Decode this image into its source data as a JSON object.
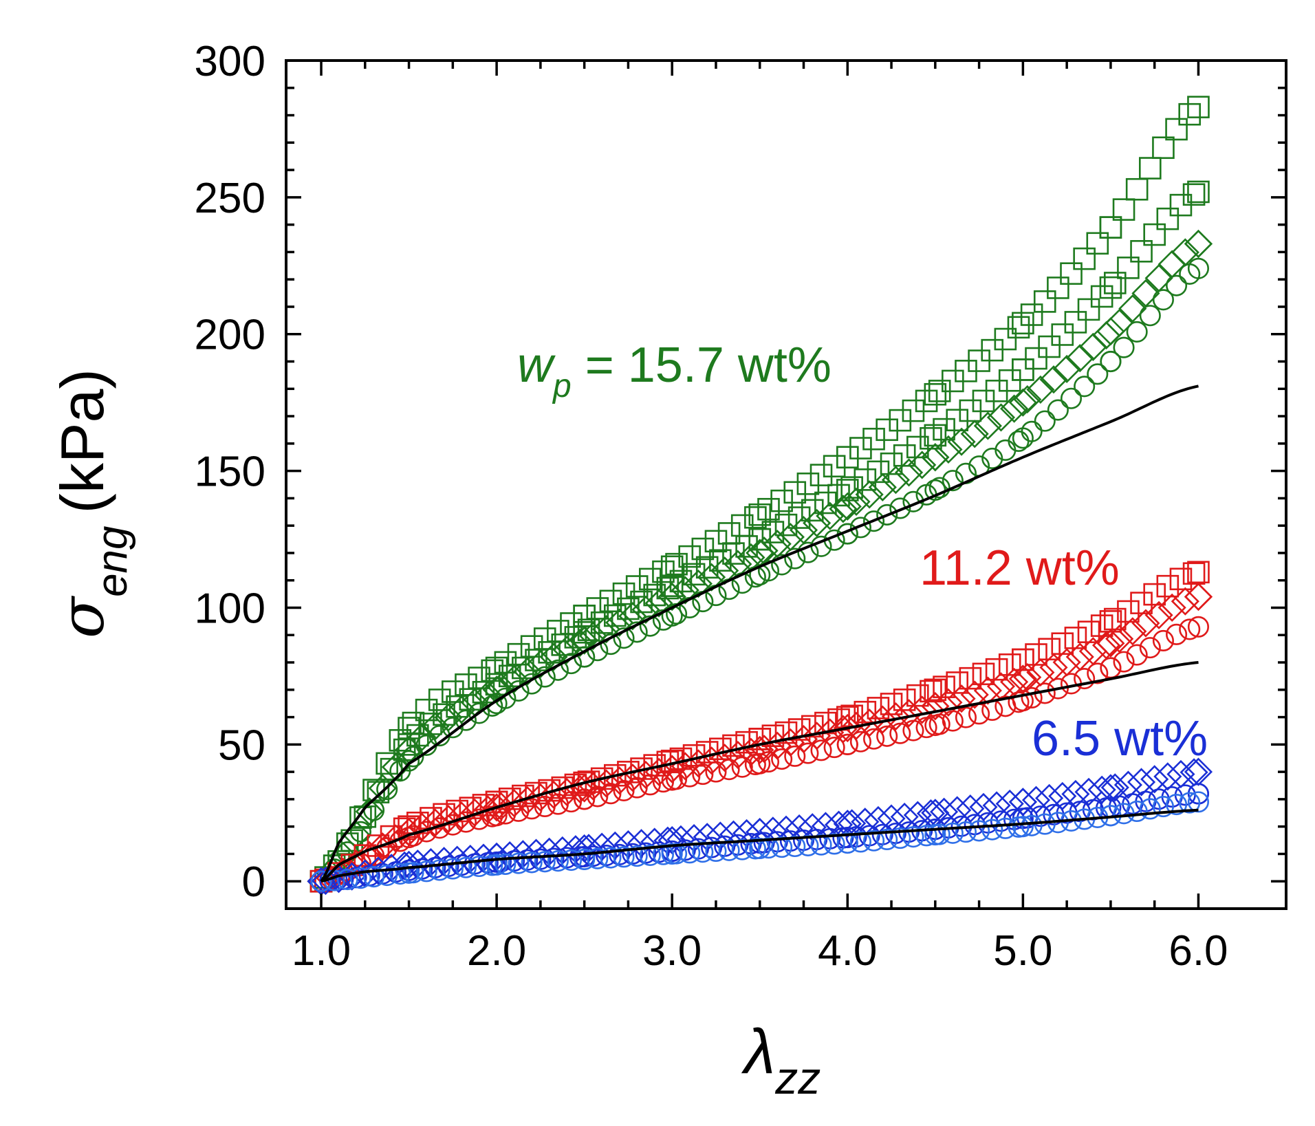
{
  "chart_data": {
    "type": "scatter",
    "xlabel": "λ",
    "xlabel_sub": "zz",
    "ylabel": "σ",
    "ylabel_sub": "eng",
    "ylabel_unit": "(kPa)",
    "xlim": [
      0.8,
      6.5
    ],
    "ylim": [
      -10,
      300
    ],
    "xticks": [
      1.0,
      2.0,
      3.0,
      4.0,
      5.0,
      6.0
    ],
    "xtick_labels": [
      "1.0",
      "2.0",
      "3.0",
      "4.0",
      "5.0",
      "6.0"
    ],
    "yticks": [
      0,
      50,
      100,
      150,
      200,
      250,
      300
    ],
    "ytick_labels": [
      "0",
      "50",
      "100",
      "150",
      "200",
      "250",
      "300"
    ],
    "colors": {
      "green": "#1e7a1e",
      "red": "#e01a1a",
      "blue": "#1a2fd6",
      "lightblue": "#2f6fe8",
      "fit": "#000000"
    },
    "annotations": [
      {
        "id": "wp157",
        "prefix": "w",
        "prefix_sub": "p",
        "text": " = 15.7 wt%",
        "color": "#1e7a1e"
      },
      {
        "id": "wp112",
        "text": "11.2 wt%",
        "color": "#e01a1a"
      },
      {
        "id": "wp65",
        "text": "6.5 wt%",
        "color": "#1a2fd6"
      }
    ],
    "series": [
      {
        "name": "15.7 wt% (square, run 1)",
        "group": "15.7 wt%",
        "marker": "square",
        "color": "#1e7a1e",
        "x": [
          1.0,
          1.5,
          2.0,
          2.5,
          3.0,
          3.5,
          4.0,
          4.5,
          5.0,
          5.5,
          6.0
        ],
        "y": [
          0,
          56,
          78,
          97,
          115,
          134,
          155,
          178,
          204,
          239,
          283
        ]
      },
      {
        "name": "15.7 wt% (square, run 2)",
        "group": "15.7 wt%",
        "marker": "square",
        "color": "#1e7a1e",
        "x": [
          1.0,
          1.5,
          2.0,
          2.5,
          3.0,
          3.5,
          4.0,
          4.5,
          5.0,
          5.5,
          6.0
        ],
        "y": [
          0,
          50,
          72,
          91,
          108,
          125,
          143,
          163,
          187,
          217,
          252
        ]
      },
      {
        "name": "15.7 wt% (diamond)",
        "group": "15.7 wt%",
        "marker": "diamond",
        "color": "#1e7a1e",
        "x": [
          1.0,
          1.5,
          2.0,
          2.5,
          3.0,
          3.5,
          4.0,
          4.5,
          5.0,
          5.5,
          6.0
        ],
        "y": [
          0,
          48,
          70,
          88,
          104,
          120,
          137,
          155,
          175,
          201,
          233
        ]
      },
      {
        "name": "15.7 wt% (circle)",
        "group": "15.7 wt%",
        "marker": "circle",
        "color": "#1e7a1e",
        "x": [
          1.0,
          1.5,
          2.0,
          2.5,
          3.0,
          3.5,
          4.0,
          4.5,
          5.0,
          5.5,
          6.0
        ],
        "y": [
          0,
          44,
          65,
          82,
          97,
          112,
          127,
          143,
          162,
          190,
          224
        ]
      },
      {
        "name": "11.2 wt% (square)",
        "group": "11.2 wt%",
        "marker": "square",
        "color": "#e01a1a",
        "x": [
          1.0,
          1.5,
          2.0,
          2.5,
          3.0,
          3.5,
          4.0,
          4.5,
          5.0,
          5.5,
          6.0
        ],
        "y": [
          0,
          20,
          29,
          36,
          44,
          52,
          60,
          70,
          81,
          95,
          113
        ]
      },
      {
        "name": "11.2 wt% (diamond)",
        "group": "11.2 wt%",
        "marker": "diamond",
        "color": "#e01a1a",
        "x": [
          1.0,
          1.5,
          2.0,
          2.5,
          3.0,
          3.5,
          4.0,
          4.5,
          5.0,
          5.5,
          6.0
        ],
        "y": [
          0,
          18,
          27,
          34,
          41,
          48,
          56,
          64,
          74,
          87,
          104
        ]
      },
      {
        "name": "11.2 wt% (circle)",
        "group": "11.2 wt%",
        "marker": "circle",
        "color": "#e01a1a",
        "x": [
          1.0,
          1.5,
          2.0,
          2.5,
          3.0,
          3.5,
          4.0,
          4.5,
          5.0,
          5.5,
          6.0
        ],
        "y": [
          0,
          16,
          24,
          30,
          37,
          43,
          50,
          57,
          66,
          78,
          93
        ]
      },
      {
        "name": "6.5 wt% (diamond)",
        "group": "6.5 wt%",
        "marker": "diamond",
        "color": "#1a2fd6",
        "x": [
          1.0,
          1.5,
          2.0,
          2.5,
          3.0,
          3.5,
          4.0,
          4.5,
          5.0,
          5.5,
          6.0
        ],
        "y": [
          0,
          6,
          9,
          12,
          15,
          18,
          21,
          25,
          29,
          34,
          40
        ]
      },
      {
        "name": "6.5 wt% (circle)",
        "group": "6.5 wt%",
        "marker": "circle",
        "color": "#1a2fd6",
        "x": [
          1.0,
          1.5,
          2.0,
          2.5,
          3.0,
          3.5,
          4.0,
          4.5,
          5.0,
          5.5,
          6.0
        ],
        "y": [
          0,
          4,
          7,
          9,
          11,
          14,
          16,
          19,
          23,
          27,
          32
        ]
      },
      {
        "name": "6.5 wt% (circle, light)",
        "group": "6.5 wt%",
        "marker": "circle",
        "color": "#2f6fe8",
        "x": [
          1.0,
          1.5,
          2.0,
          2.5,
          3.0,
          3.5,
          4.0,
          4.5,
          5.0,
          5.5,
          6.0
        ],
        "y": [
          0,
          3,
          6,
          8,
          10,
          12,
          14,
          17,
          20,
          24,
          29
        ]
      }
    ],
    "fits": [
      {
        "name": "fit 15.7 wt%",
        "color": "#000000",
        "x": [
          1.0,
          1.1,
          1.25,
          1.5,
          2.0,
          2.5,
          3.0,
          3.5,
          4.0,
          4.5,
          5.0,
          5.5,
          6.0
        ],
        "y": [
          0,
          14,
          27,
          43,
          66,
          84,
          100,
          115,
          128,
          141,
          155,
          168,
          181
        ]
      },
      {
        "name": "fit 11.2 wt%",
        "color": "#000000",
        "x": [
          1.0,
          1.1,
          1.25,
          1.5,
          2.0,
          2.5,
          3.0,
          3.5,
          4.0,
          4.5,
          5.0,
          5.5,
          6.0
        ],
        "y": [
          0,
          6,
          11,
          17,
          27,
          36,
          43,
          50,
          56,
          62,
          68,
          74,
          80
        ]
      },
      {
        "name": "fit 6.5 wt%",
        "color": "#000000",
        "x": [
          1.0,
          1.1,
          1.25,
          1.5,
          2.0,
          2.5,
          3.0,
          3.5,
          4.0,
          4.5,
          5.0,
          5.5,
          6.0
        ],
        "y": [
          0,
          2,
          3.5,
          5,
          8,
          10,
          13,
          15,
          17,
          19,
          21,
          23.5,
          26
        ]
      }
    ]
  }
}
